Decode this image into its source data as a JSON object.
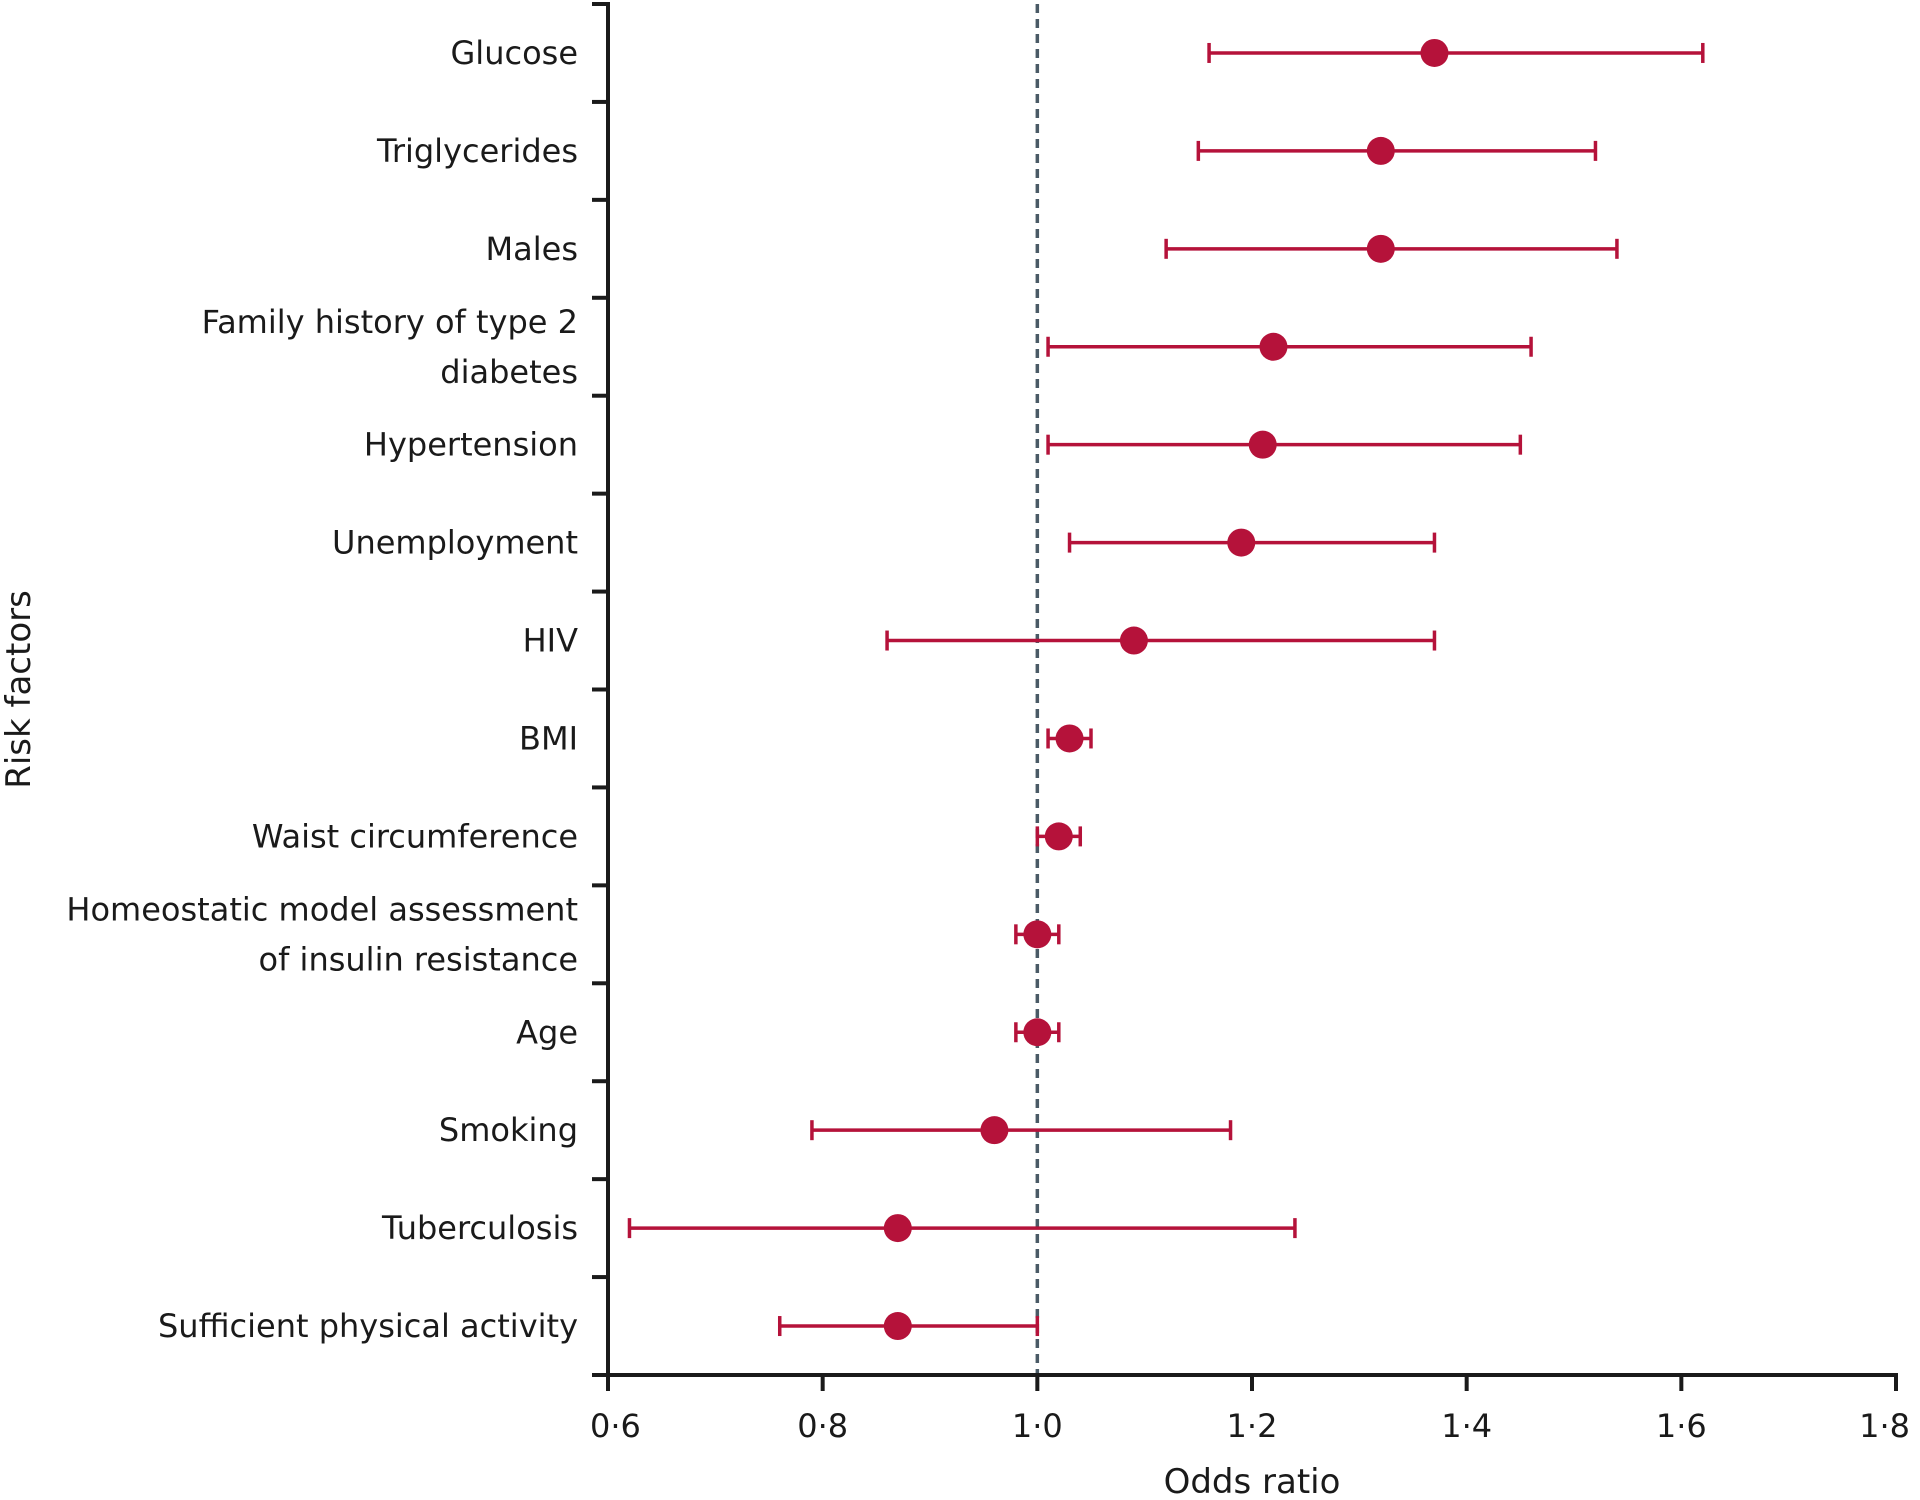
{
  "chart_data": {
    "type": "forest",
    "xlabel": "Odds ratio",
    "ylabel": "Risk factors",
    "xlim": [
      0.6,
      1.8
    ],
    "xticks": [
      0.6,
      0.8,
      1.0,
      1.2,
      1.4,
      1.6,
      1.8
    ],
    "xtick_labels": [
      "0·6",
      "0·8",
      "1·0",
      "1·2",
      "1·4",
      "1·6",
      "1·8"
    ],
    "reference_line": 1.0,
    "marker_color": "#b5123a",
    "reference_color": "#4a5a66",
    "rows": [
      {
        "label": [
          "Glucose"
        ],
        "or": 1.37,
        "lo": 1.16,
        "hi": 1.62
      },
      {
        "label": [
          "Triglycerides"
        ],
        "or": 1.32,
        "lo": 1.15,
        "hi": 1.52
      },
      {
        "label": [
          "Males"
        ],
        "or": 1.32,
        "lo": 1.12,
        "hi": 1.54
      },
      {
        "label": [
          "Family history of type 2",
          "diabetes"
        ],
        "or": 1.22,
        "lo": 1.01,
        "hi": 1.46
      },
      {
        "label": [
          "Hypertension"
        ],
        "or": 1.21,
        "lo": 1.01,
        "hi": 1.45
      },
      {
        "label": [
          "Unemployment"
        ],
        "or": 1.19,
        "lo": 1.03,
        "hi": 1.37
      },
      {
        "label": [
          "HIV"
        ],
        "or": 1.09,
        "lo": 0.86,
        "hi": 1.37
      },
      {
        "label": [
          "BMI"
        ],
        "or": 1.03,
        "lo": 1.01,
        "hi": 1.05
      },
      {
        "label": [
          "Waist circumference"
        ],
        "or": 1.02,
        "lo": 1.0,
        "hi": 1.04
      },
      {
        "label": [
          "Homeostatic model assessment",
          "of insulin resistance"
        ],
        "or": 1.0,
        "lo": 0.98,
        "hi": 1.02
      },
      {
        "label": [
          "Age"
        ],
        "or": 1.0,
        "lo": 0.98,
        "hi": 1.02
      },
      {
        "label": [
          "Smoking"
        ],
        "or": 0.96,
        "lo": 0.79,
        "hi": 1.18
      },
      {
        "label": [
          "Tuberculosis"
        ],
        "or": 0.87,
        "lo": 0.62,
        "hi": 1.24
      },
      {
        "label": [
          "Sufficient physical activity"
        ],
        "or": 0.87,
        "lo": 0.76,
        "hi": 1.0
      }
    ]
  }
}
